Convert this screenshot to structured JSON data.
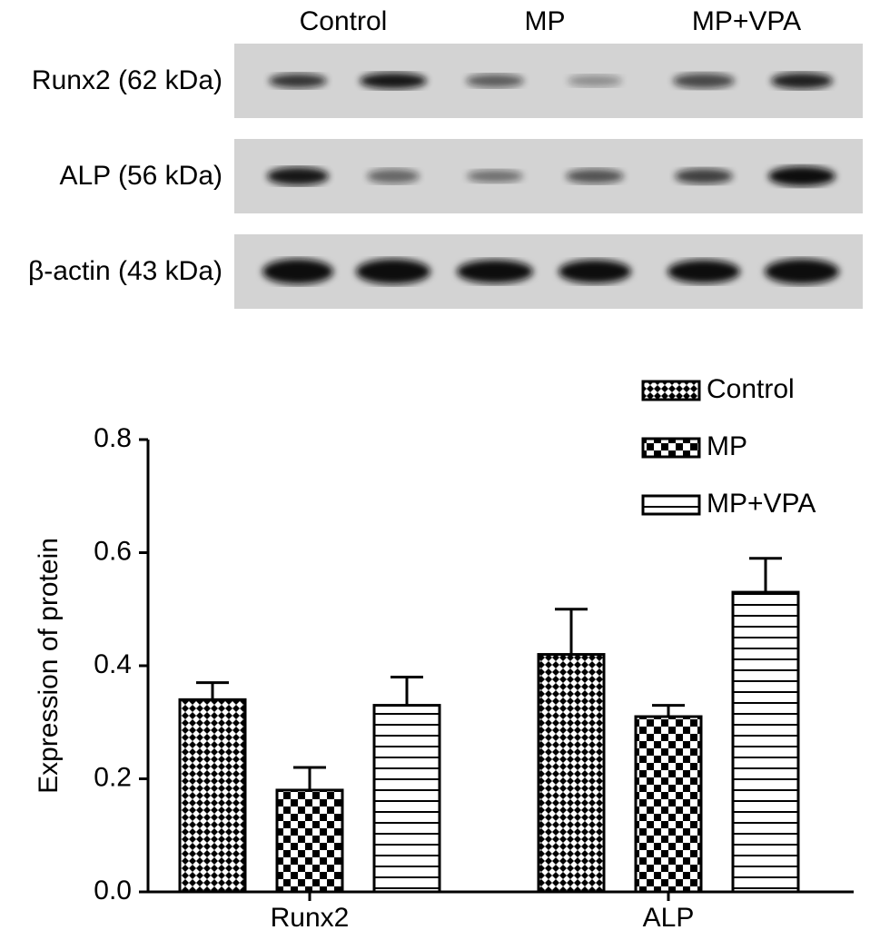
{
  "blot": {
    "groups": [
      "Control",
      "MP",
      "MP+VPA"
    ],
    "rows": [
      "Runx2 (62 kDa)",
      "ALP (56 kDa)",
      "β-actin (43 kDa)"
    ]
  },
  "chart_data": {
    "type": "bar",
    "y_label": "Expression of protein",
    "categories": [
      "Runx2",
      "ALP"
    ],
    "series": [
      {
        "name": "Control",
        "color": "#000000",
        "pattern": "crosshatch",
        "values": [
          0.34,
          0.42
        ],
        "errors": [
          0.03,
          0.08
        ]
      },
      {
        "name": "MP",
        "color": "#000000",
        "pattern": "checker",
        "values": [
          0.18,
          0.31
        ],
        "errors": [
          0.04,
          0.02
        ]
      },
      {
        "name": "MP+VPA",
        "color": "#000000",
        "pattern": "hstripes",
        "values": [
          0.33,
          0.53
        ],
        "errors": [
          0.05,
          0.06
        ]
      }
    ],
    "ylim": [
      0,
      0.8
    ],
    "yticks": [
      {
        "value": 0,
        "label": "0.0"
      },
      0.2,
      0.4,
      0.6,
      0.8
    ],
    "legend": "top-right"
  }
}
